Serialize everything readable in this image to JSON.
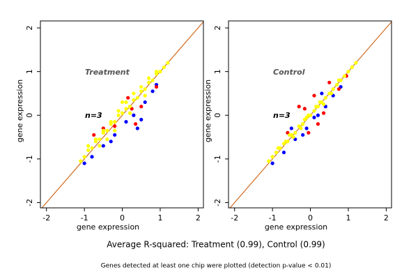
{
  "chart_data": [
    {
      "type": "scatter",
      "annotations": [
        "Treatment",
        "n=3"
      ],
      "x_label": "gene expression",
      "y_label": "gene expression",
      "xlim": [
        -2.16,
        2.14
      ],
      "ylim": [
        -2.12,
        2.16
      ],
      "xticks": [
        -2,
        -1,
        0,
        1,
        2
      ],
      "yticks": [
        -2,
        -1,
        0,
        1,
        2
      ],
      "line_color": "#d2691e",
      "series": [
        {
          "color": "#0000ff",
          "x": [
            -1.0,
            -0.8,
            -0.5,
            -0.2,
            0.1,
            0.3,
            0.4,
            0.6,
            0.8,
            0.5,
            0.9,
            -0.3
          ],
          "y": [
            -1.1,
            -0.95,
            -0.7,
            -0.45,
            -0.15,
            0.0,
            -0.3,
            0.3,
            0.55,
            -0.1,
            0.7,
            -0.6
          ]
        },
        {
          "color": "#ff0000",
          "x": [
            -0.75,
            0.25,
            0.35,
            -0.2,
            0.5,
            0.9,
            0.15,
            -0.5
          ],
          "y": [
            -0.45,
            0.15,
            -0.2,
            -0.25,
            0.2,
            0.65,
            0.4,
            -0.3
          ]
        },
        {
          "color": "#ffff00",
          "x": [
            -1.1,
            -1.0,
            -0.9,
            -0.8,
            -0.7,
            -0.6,
            -0.5,
            -0.4,
            -0.3,
            -0.2,
            -0.1,
            0,
            0.1,
            0.2,
            0.3,
            0.4,
            0.5,
            0.6,
            0.7,
            0.8,
            0.9,
            1.0,
            1.1,
            1.2,
            -0.9,
            -0.7,
            -0.5,
            -0.3,
            -0.1,
            0.1,
            0.3,
            0.5,
            0.7,
            0.9,
            -0.6,
            -0.2,
            0.2,
            0.6,
            -0.4,
            0.0
          ],
          "y": [
            -1.05,
            -0.95,
            -0.8,
            -0.75,
            -0.6,
            -0.55,
            -0.4,
            -0.35,
            -0.2,
            -0.15,
            0.0,
            0.05,
            0.15,
            0.2,
            0.35,
            0.4,
            0.55,
            0.6,
            0.75,
            0.8,
            0.95,
            1.0,
            1.1,
            1.2,
            -0.7,
            -0.55,
            -0.35,
            -0.15,
            0.1,
            0.3,
            0.5,
            0.65,
            0.85,
            1.0,
            -0.7,
            -0.35,
            0.05,
            0.45,
            -0.55,
            0.3
          ]
        }
      ]
    },
    {
      "type": "scatter",
      "annotations": [
        "Control",
        "n=3"
      ],
      "x_label": "gene expression",
      "y_label": "gene expression",
      "xlim": [
        -2.16,
        2.14
      ],
      "ylim": [
        -2.12,
        2.16
      ],
      "xticks": [
        -2,
        -1,
        0,
        1,
        2
      ],
      "yticks": [
        -2,
        -1,
        0,
        1,
        2
      ],
      "line_color": "#d2691e",
      "series": [
        {
          "color": "#0000ff",
          "x": [
            -1.0,
            -0.7,
            -0.4,
            -0.1,
            0.2,
            0.4,
            0.6,
            0.8,
            -0.5,
            0.3,
            0.1,
            -0.2
          ],
          "y": [
            -1.1,
            -0.85,
            -0.55,
            -0.3,
            0.0,
            0.2,
            0.45,
            0.65,
            -0.3,
            0.5,
            -0.05,
            -0.45
          ]
        },
        {
          "color": "#ff0000",
          "x": [
            -0.3,
            -0.05,
            0.2,
            0.5,
            0.75,
            -0.6,
            0.35,
            0.95,
            0.1,
            -0.15
          ],
          "y": [
            0.2,
            -0.4,
            -0.2,
            0.75,
            0.6,
            -0.4,
            0.05,
            0.9,
            0.45,
            0.15
          ]
        },
        {
          "color": "#ffff00",
          "x": [
            -1.1,
            -1.0,
            -0.9,
            -0.8,
            -0.7,
            -0.6,
            -0.5,
            -0.4,
            -0.3,
            -0.2,
            -0.1,
            0,
            0.1,
            0.2,
            0.3,
            0.4,
            0.5,
            0.6,
            0.7,
            0.8,
            0.9,
            1.0,
            1.1,
            1.2,
            -0.85,
            -0.65,
            -0.45,
            -0.25,
            -0.05,
            0.15,
            0.35,
            0.55,
            0.75,
            -0.55,
            -0.15,
            0.25
          ],
          "y": [
            -1.05,
            -0.95,
            -0.85,
            -0.75,
            -0.65,
            -0.6,
            -0.45,
            -0.4,
            -0.25,
            -0.2,
            -0.05,
            0.0,
            0.1,
            0.2,
            0.3,
            0.4,
            0.5,
            0.6,
            0.7,
            0.8,
            0.9,
            1.0,
            1.1,
            1.2,
            -0.75,
            -0.6,
            -0.5,
            -0.3,
            0.0,
            0.2,
            0.25,
            0.5,
            0.8,
            -0.45,
            -0.1,
            0.3
          ]
        }
      ]
    }
  ],
  "caption": "Average R-squared: Treatment (0.99), Control (0.99)",
  "note": "Genes detected at least one chip were plotted (detection p-value < 0.01)"
}
